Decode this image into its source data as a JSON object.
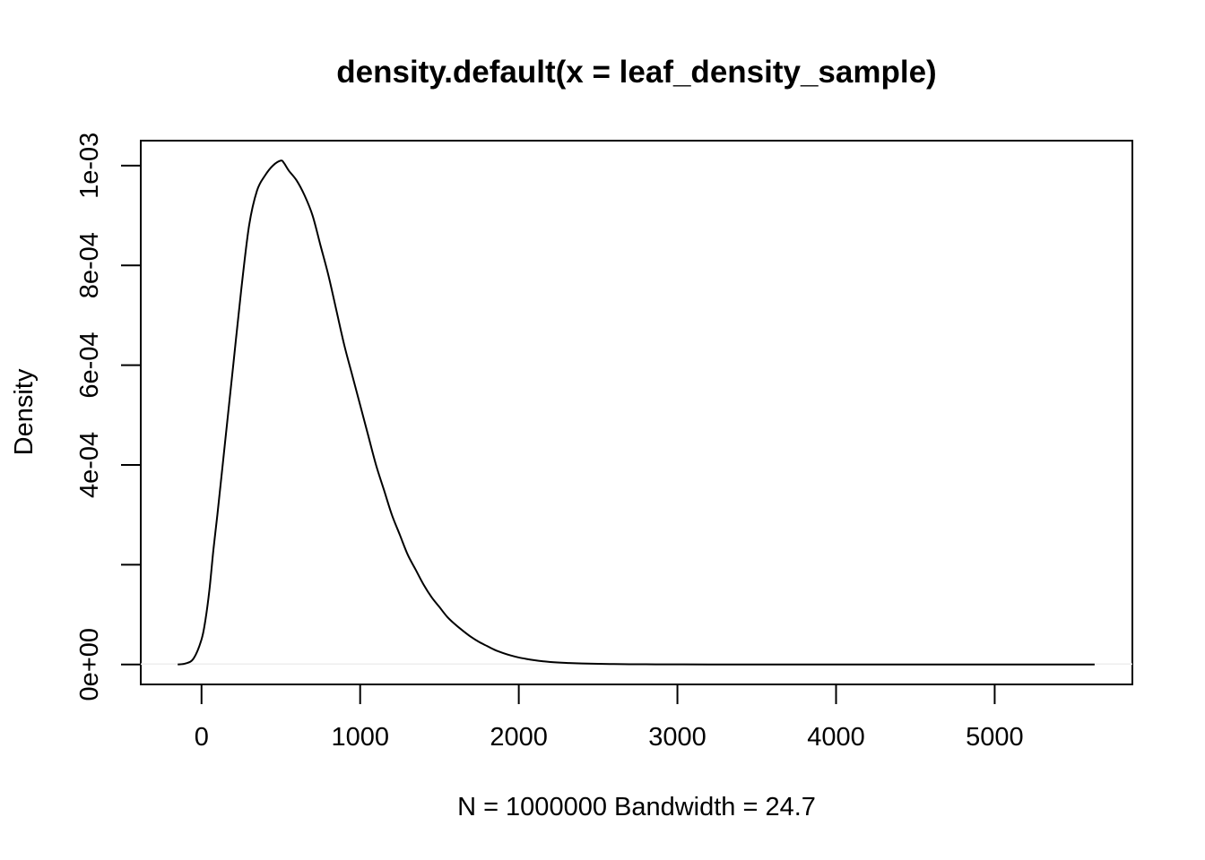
{
  "chart_data": {
    "type": "line",
    "title": "density.default(x = leaf_density_sample)",
    "xlabel": "N = 1000000   Bandwidth = 24.7",
    "ylabel": "Density",
    "xlim": [
      -383,
      5868
    ],
    "ylim": [
      -4e-05,
      0.00105
    ],
    "x_ticks": [
      0,
      1000,
      2000,
      3000,
      4000,
      5000
    ],
    "x_tick_labels": [
      "0",
      "1000",
      "2000",
      "3000",
      "4000",
      "5000"
    ],
    "y_ticks": [
      0,
      0.0002,
      0.0004,
      0.0006,
      0.0008,
      0.001
    ],
    "y_tick_labels": [
      "0e+00",
      "",
      "4e-04",
      "6e-04",
      "8e-04",
      "1e-03"
    ],
    "grid": false,
    "legend": "none",
    "series": [
      {
        "color": "#000000",
        "x": [
          -150,
          -100,
          -50,
          0,
          25,
          50,
          75,
          100,
          150,
          200,
          250,
          300,
          350,
          400,
          450,
          500,
          520,
          550,
          600,
          650,
          700,
          750,
          800,
          850,
          900,
          950,
          1000,
          1050,
          1100,
          1150,
          1200,
          1250,
          1300,
          1350,
          1400,
          1450,
          1500,
          1550,
          1600,
          1650,
          1700,
          1750,
          1800,
          1850,
          1900,
          1950,
          2000,
          2050,
          2100,
          2150,
          2200,
          2300,
          2400,
          2500,
          2600,
          2700,
          2800,
          2900,
          3000,
          3200,
          3500,
          4000,
          4500,
          5000,
          5500,
          5630
        ],
        "y": [
          0.0,
          2e-06,
          1.2e-05,
          5e-05,
          9e-05,
          0.00015,
          0.00023,
          0.0003,
          0.00045,
          0.0006,
          0.00075,
          0.00088,
          0.00095,
          0.00098,
          0.001,
          0.00101,
          0.001005,
          0.00099,
          0.00097,
          0.00094,
          0.0009,
          0.00084,
          0.00078,
          0.00071,
          0.00064,
          0.00058,
          0.00052,
          0.00046,
          0.0004,
          0.00035,
          0.0003,
          0.00026,
          0.00022,
          0.00019,
          0.00016,
          0.000135,
          0.000115,
          9.5e-05,
          8e-05,
          6.7e-05,
          5.5e-05,
          4.5e-05,
          3.7e-05,
          2.9e-05,
          2.3e-05,
          1.8e-05,
          1.4e-05,
          1.1e-05,
          8.5e-06,
          6.5e-06,
          5e-06,
          3.2e-06,
          2e-06,
          1.2e-06,
          8e-07,
          5e-07,
          3e-07,
          2e-07,
          1.2e-07,
          6e-08,
          2e-08,
          5e-09,
          0.0,
          0.0,
          0.0,
          0.0
        ]
      }
    ]
  }
}
